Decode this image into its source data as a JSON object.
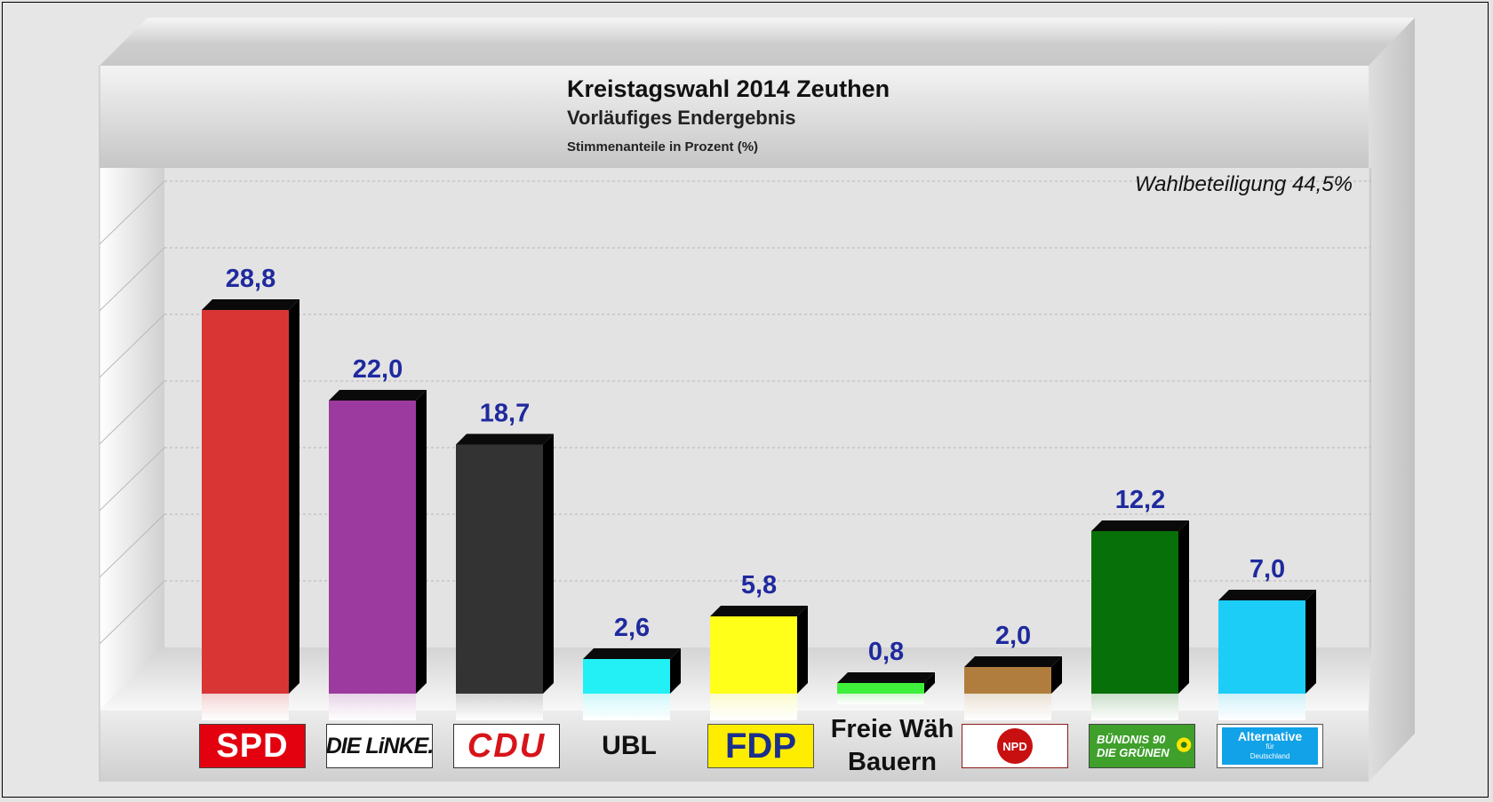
{
  "chart_data": {
    "type": "bar",
    "title": "Kreistagswahl 2014 Zeuthen",
    "subtitle": "Vorläufiges Endergebnis",
    "caption": "Stimmenanteile in Prozent (%)",
    "annotation": "Wahlbeteiligung 44,5%",
    "categories": [
      "SPD",
      "DIE LINKE.",
      "CDU",
      "UBL",
      "FDP",
      "Freie Wäh Bauern",
      "NPD",
      "BÜNDNIS 90 DIE GRÜNEN",
      "Alternative für Deutschland"
    ],
    "values": [
      28.8,
      22.0,
      18.7,
      2.6,
      5.8,
      0.8,
      2.0,
      12.2,
      7.0
    ],
    "value_labels": [
      "28,8",
      "22,0",
      "18,7",
      "2,6",
      "5,8",
      "0,8",
      "2,0",
      "12,2",
      "7,0"
    ],
    "colors": [
      "#d93535",
      "#9d3a9f",
      "#333333",
      "#22f0f5",
      "#ffff1a",
      "#3ef03a",
      "#b07d3e",
      "#087008",
      "#1ccdf8"
    ],
    "value_label_color": "#1f2a9e",
    "ylim": [
      0,
      40
    ],
    "grid": true,
    "legend": "none"
  },
  "logos": {
    "spd": "SPD",
    "linke": "DIE LiNKE.",
    "cdu": "CDU",
    "ubl": "UBL",
    "fdp": "FDP",
    "freie_line1": "Freie Wäh",
    "freie_line2": "Bauern",
    "npd": "NPD",
    "gruene_line1": "BÜNDNIS 90",
    "gruene_line2": "DIE GRÜNEN",
    "afd_line1": "Alternative",
    "afd_line2": "für",
    "afd_line3": "Deutschland"
  }
}
